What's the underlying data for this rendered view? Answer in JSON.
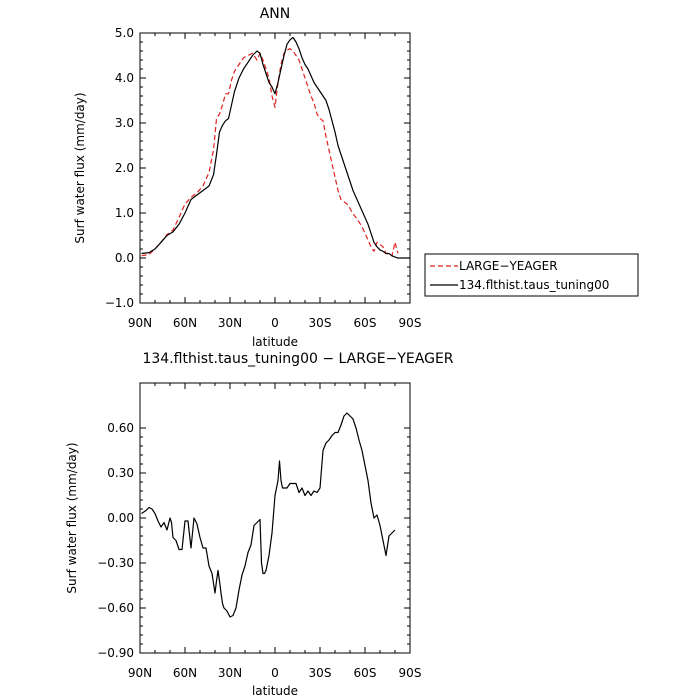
{
  "chart_data": [
    {
      "type": "line",
      "title": "ANN",
      "xlabel": "latitude",
      "ylabel": "Surf water flux (mm/day)",
      "xlim": [
        -90,
        90
      ],
      "ylim": [
        -1.0,
        5.0
      ],
      "xticks": [
        -90,
        -60,
        -30,
        0,
        30,
        60,
        90
      ],
      "xtick_labels": [
        "90N",
        "60N",
        "30N",
        "0",
        "30S",
        "60S",
        "90S"
      ],
      "yticks": [
        -1.0,
        0.0,
        1.0,
        2.0,
        3.0,
        4.0,
        5.0
      ],
      "ytick_labels": [
        "−1.0",
        "0.0",
        "1.0",
        "2.0",
        "3.0",
        "4.0",
        "5.0"
      ],
      "legend": {
        "placement": "right",
        "entries": [
          "LARGE−YEAGER",
          "134.flthist.taus_tuning00"
        ]
      },
      "series": [
        {
          "name": "LARGE−YEAGER",
          "color": "#e02020",
          "dash": "dashed",
          "x": [
            -89,
            -84,
            -80,
            -76,
            -72,
            -68,
            -64,
            -60,
            -56,
            -52,
            -48,
            -44,
            -41,
            -39,
            -37,
            -35,
            -33,
            -31,
            -29,
            -27,
            -24,
            -21,
            -18,
            -15,
            -12,
            -10,
            -8,
            -6,
            -4,
            -2,
            0,
            2,
            4,
            6,
            8,
            10,
            12,
            14,
            16,
            18,
            20,
            22,
            24,
            26,
            28,
            30,
            32,
            34,
            36,
            38,
            40,
            42,
            44,
            46,
            48,
            50,
            52,
            54,
            56,
            58,
            60,
            62,
            64,
            66,
            68,
            70,
            72,
            74,
            76,
            78,
            80,
            82
          ],
          "y": [
            0.05,
            0.08,
            0.2,
            0.35,
            0.52,
            0.62,
            0.9,
            1.2,
            1.35,
            1.45,
            1.6,
            1.9,
            2.4,
            3.1,
            3.2,
            3.4,
            3.65,
            3.65,
            3.95,
            4.15,
            4.3,
            4.45,
            4.5,
            4.55,
            4.4,
            4.55,
            4.4,
            4.2,
            4.0,
            3.6,
            3.35,
            3.9,
            4.3,
            4.55,
            4.62,
            4.65,
            4.6,
            4.5,
            4.4,
            4.2,
            4.0,
            3.8,
            3.6,
            3.45,
            3.2,
            3.1,
            3.05,
            2.7,
            2.4,
            2.1,
            1.8,
            1.5,
            1.3,
            1.25,
            1.2,
            1.1,
            0.98,
            0.9,
            0.8,
            0.7,
            0.55,
            0.4,
            0.25,
            0.15,
            0.35,
            0.3,
            0.25,
            0.1,
            0.08,
            0.05,
            0.35,
            0.1
          ]
        },
        {
          "name": "134.flthist.taus_tuning00",
          "color": "#000000",
          "dash": "solid",
          "x": [
            -89,
            -84,
            -80,
            -76,
            -72,
            -68,
            -64,
            -60,
            -56,
            -52,
            -48,
            -44,
            -41,
            -39,
            -37,
            -35,
            -33,
            -31,
            -29,
            -27,
            -24,
            -21,
            -18,
            -15,
            -12,
            -10,
            -8,
            -6,
            -4,
            -2,
            0,
            2,
            4,
            6,
            8,
            10,
            12,
            14,
            16,
            18,
            20,
            22,
            24,
            26,
            28,
            30,
            32,
            34,
            36,
            38,
            40,
            42,
            44,
            46,
            48,
            50,
            52,
            54,
            56,
            58,
            60,
            62,
            64,
            66,
            68,
            70,
            72,
            74,
            76,
            78,
            80,
            82,
            86,
            90
          ],
          "y": [
            0.1,
            0.12,
            0.2,
            0.35,
            0.5,
            0.58,
            0.75,
            1.0,
            1.3,
            1.4,
            1.5,
            1.6,
            1.85,
            2.3,
            2.8,
            2.95,
            3.05,
            3.1,
            3.4,
            3.7,
            4.0,
            4.2,
            4.35,
            4.5,
            4.6,
            4.55,
            4.3,
            4.1,
            3.9,
            3.8,
            3.65,
            3.9,
            4.2,
            4.5,
            4.75,
            4.85,
            4.9,
            4.8,
            4.65,
            4.45,
            4.3,
            4.2,
            4.05,
            3.9,
            3.8,
            3.7,
            3.6,
            3.5,
            3.3,
            3.05,
            2.8,
            2.5,
            2.3,
            2.1,
            1.9,
            1.7,
            1.5,
            1.35,
            1.2,
            1.05,
            0.9,
            0.75,
            0.55,
            0.35,
            0.25,
            0.18,
            0.15,
            0.1,
            0.1,
            0.05,
            0.02,
            0.0,
            0.0,
            0.0
          ]
        }
      ]
    },
    {
      "type": "line",
      "title": "134.flthist.taus_tuning00 − LARGE−YEAGER",
      "xlabel": "latitude",
      "ylabel": "Surf water flux (mm/day)",
      "xlim": [
        -90,
        90
      ],
      "ylim": [
        -0.9,
        0.9
      ],
      "xticks": [
        -90,
        -60,
        -30,
        0,
        30,
        60,
        90
      ],
      "xtick_labels": [
        "90N",
        "60N",
        "30N",
        "0",
        "30S",
        "60S",
        "90S"
      ],
      "yticks": [
        -0.9,
        -0.6,
        -0.3,
        0.0,
        0.3,
        0.6
      ],
      "ytick_labels": [
        "−0.90",
        "−0.60",
        "−0.30",
        "0.00",
        "0.30",
        "0.60"
      ],
      "series": [
        {
          "color": "#000000",
          "x": [
            -89,
            -86,
            -84,
            -82,
            -80,
            -78,
            -76,
            -74,
            -72,
            -70,
            -69,
            -68,
            -66,
            -64,
            -62,
            -60,
            -58,
            -56,
            -54,
            -52,
            -50,
            -48,
            -46,
            -44,
            -42,
            -40,
            -39,
            -38,
            -37,
            -36,
            -35,
            -34,
            -32,
            -30,
            -28,
            -26,
            -24,
            -22,
            -20,
            -18,
            -16,
            -14,
            -12,
            -10,
            -9,
            -8,
            -7,
            -6,
            -5,
            -4,
            -2,
            0,
            2,
            3,
            4,
            5,
            6,
            8,
            10,
            12,
            14,
            16,
            18,
            20,
            22,
            24,
            26,
            28,
            30,
            32,
            34,
            36,
            38,
            40,
            42,
            44,
            46,
            48,
            50,
            52,
            54,
            56,
            58,
            60,
            62,
            64,
            66,
            68,
            70,
            72,
            74,
            76,
            78,
            80
          ],
          "y": [
            0.03,
            0.05,
            0.07,
            0.06,
            0.03,
            -0.02,
            -0.06,
            -0.03,
            -0.08,
            0.0,
            -0.03,
            -0.13,
            -0.15,
            -0.21,
            -0.21,
            -0.02,
            -0.02,
            -0.2,
            0.0,
            -0.04,
            -0.13,
            -0.2,
            -0.2,
            -0.32,
            -0.37,
            -0.5,
            -0.42,
            -0.35,
            -0.42,
            -0.5,
            -0.57,
            -0.6,
            -0.62,
            -0.66,
            -0.65,
            -0.6,
            -0.48,
            -0.38,
            -0.32,
            -0.23,
            -0.18,
            -0.05,
            -0.03,
            -0.01,
            -0.3,
            -0.37,
            -0.37,
            -0.35,
            -0.3,
            -0.25,
            -0.1,
            0.15,
            0.25,
            0.38,
            0.25,
            0.2,
            0.2,
            0.2,
            0.23,
            0.23,
            0.23,
            0.17,
            0.2,
            0.15,
            0.18,
            0.15,
            0.18,
            0.17,
            0.2,
            0.45,
            0.5,
            0.52,
            0.55,
            0.57,
            0.57,
            0.62,
            0.68,
            0.7,
            0.68,
            0.66,
            0.6,
            0.52,
            0.45,
            0.35,
            0.25,
            0.1,
            0.0,
            0.02,
            -0.05,
            -0.15,
            -0.25,
            -0.12,
            -0.1,
            -0.08
          ]
        }
      ]
    }
  ]
}
